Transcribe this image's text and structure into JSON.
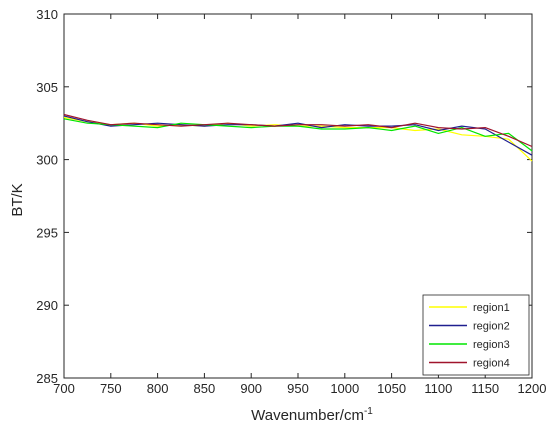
{
  "chart_data": {
    "type": "line",
    "xlabel": "Wavenumber/cm",
    "xlabel_superscript": "-1",
    "ylabel": "BT/K",
    "xlim": [
      700,
      1200
    ],
    "ylim": [
      285,
      310
    ],
    "xticks": [
      700,
      750,
      800,
      850,
      900,
      950,
      1000,
      1050,
      1100,
      1150,
      1200
    ],
    "yticks": [
      285,
      290,
      295,
      300,
      305,
      310
    ],
    "grid": false,
    "legend_position": "bottom-right",
    "x": [
      700,
      725,
      750,
      775,
      800,
      825,
      850,
      875,
      900,
      925,
      950,
      975,
      1000,
      1025,
      1050,
      1075,
      1100,
      1125,
      1150,
      1175,
      1200
    ],
    "series": [
      {
        "name": "region1",
        "color": "#ffff00",
        "values": [
          302.9,
          302.6,
          302.4,
          302.5,
          302.3,
          302.4,
          302.3,
          302.5,
          302.3,
          302.4,
          302.3,
          302.3,
          302.2,
          302.2,
          302.2,
          302.0,
          302.1,
          301.7,
          301.6,
          301.4,
          299.9
        ]
      },
      {
        "name": "region2",
        "color": "#1f1f8f",
        "values": [
          303.0,
          302.6,
          302.3,
          302.4,
          302.5,
          302.4,
          302.3,
          302.4,
          302.4,
          302.3,
          302.5,
          302.2,
          302.4,
          302.3,
          302.3,
          302.4,
          302.0,
          302.3,
          302.1,
          301.2,
          300.3
        ]
      },
      {
        "name": "region3",
        "color": "#00e600",
        "values": [
          302.8,
          302.5,
          302.4,
          302.3,
          302.2,
          302.5,
          302.4,
          302.3,
          302.2,
          302.3,
          302.3,
          302.1,
          302.1,
          302.2,
          302.0,
          302.3,
          301.8,
          302.2,
          301.6,
          301.8,
          300.6
        ]
      },
      {
        "name": "region4",
        "color": "#a0142c",
        "values": [
          303.1,
          302.7,
          302.4,
          302.5,
          302.4,
          302.3,
          302.4,
          302.5,
          302.4,
          302.3,
          302.4,
          302.4,
          302.3,
          302.4,
          302.2,
          302.5,
          302.2,
          302.1,
          302.2,
          301.6,
          300.9
        ]
      }
    ]
  }
}
